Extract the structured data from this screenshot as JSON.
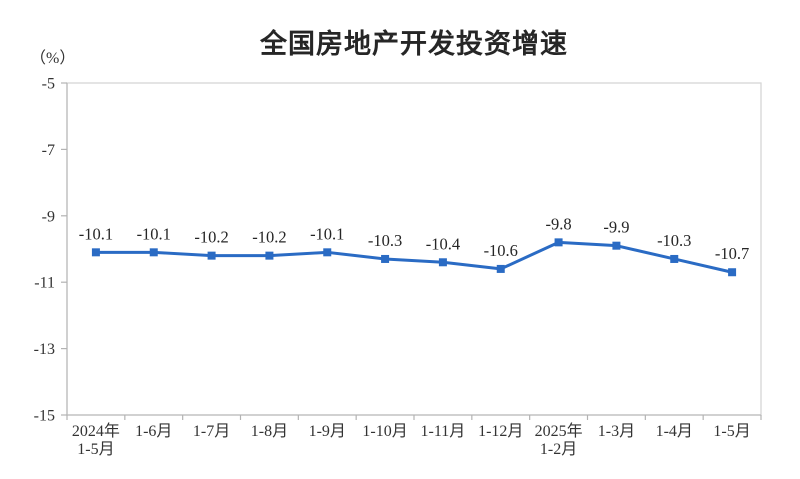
{
  "chart_data": {
    "type": "line",
    "title": "全国房地产开发投资增速",
    "unit_label": "（%）",
    "categories": [
      [
        "2024年",
        "1-5月"
      ],
      [
        "1-6月"
      ],
      [
        "1-7月"
      ],
      [
        "1-8月"
      ],
      [
        "1-9月"
      ],
      [
        "1-10月"
      ],
      [
        "1-11月"
      ],
      [
        "1-12月"
      ],
      [
        "2025年",
        "1-2月"
      ],
      [
        "1-3月"
      ],
      [
        "1-4月"
      ],
      [
        "1-5月"
      ]
    ],
    "values": [
      -10.1,
      -10.1,
      -10.2,
      -10.2,
      -10.1,
      -10.3,
      -10.4,
      -10.6,
      -9.8,
      -9.9,
      -10.3,
      -10.7
    ],
    "point_labels": [
      "-10.1",
      "-10.1",
      "-10.2",
      "-10.2",
      "-10.1",
      "-10.3",
      "-10.4",
      "-10.6",
      "-9.8",
      "-9.9",
      "-10.3",
      "-10.7"
    ],
    "xlabel": "",
    "ylabel": "",
    "ylim": [
      -15,
      -5
    ],
    "y_ticks": [
      -5,
      -7,
      -9,
      -11,
      -13,
      -15
    ],
    "grid": "off",
    "legend": "none",
    "colors": {
      "line": "#2a6bc4",
      "marker": "#2a6bc4",
      "plot_border": "#d6d6d6",
      "axis_line": "#bdbdbd",
      "tick_mark": "#b3b3b3",
      "tick_text": "#333333",
      "data_label_text": "#262626",
      "title_text": "#262626",
      "background": "#ffffff"
    }
  }
}
